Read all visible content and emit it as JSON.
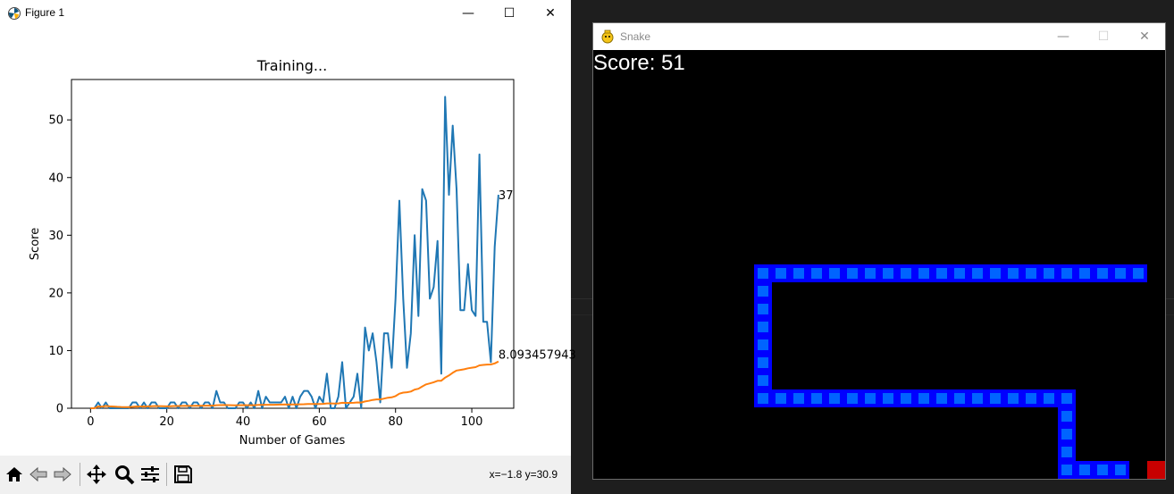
{
  "figure_window": {
    "title": "Figure 1",
    "controls": {
      "minimize": "—",
      "maximize": "☐",
      "close": "✕"
    }
  },
  "plot": {
    "title": "Training...",
    "xlabel": "Number of Games",
    "ylabel": "Score",
    "last_score_label": "37",
    "last_mean_label": "8.093457943"
  },
  "chart_data": {
    "type": "line",
    "title": "Training...",
    "xlabel": "Number of Games",
    "ylabel": "Score",
    "xlim": [
      -5,
      111
    ],
    "ylim": [
      0,
      57
    ],
    "xticks": [
      0,
      20,
      40,
      60,
      80,
      100
    ],
    "yticks": [
      0,
      10,
      20,
      30,
      40,
      50
    ],
    "grid": false,
    "series": [
      {
        "color": "#1f77b4",
        "values": [
          0,
          0,
          1,
          0,
          1,
          0,
          0,
          0,
          0,
          0,
          0,
          1,
          1,
          0,
          1,
          0,
          1,
          1,
          0,
          0,
          0,
          1,
          1,
          0,
          1,
          1,
          0,
          1,
          1,
          0,
          1,
          1,
          0,
          3,
          1,
          1,
          0,
          0,
          0,
          1,
          1,
          0,
          1,
          0,
          3,
          0,
          2,
          1,
          1,
          1,
          1,
          2,
          0,
          2,
          0,
          2,
          3,
          3,
          2,
          0,
          2,
          1,
          6,
          0,
          0,
          2,
          8,
          0,
          1,
          2,
          6,
          0,
          14,
          10,
          13,
          8,
          1,
          13,
          13,
          7,
          19,
          36,
          19,
          7,
          13,
          30,
          16,
          38,
          36,
          19,
          21,
          29,
          6,
          54,
          37,
          49,
          38,
          17,
          17,
          25,
          17,
          16,
          44,
          15,
          15,
          8,
          28,
          37
        ]
      },
      {
        "color": "#ff7f0e",
        "values": [
          0,
          0,
          0.33,
          0.25,
          0.4,
          0.33,
          0.29,
          0.25,
          0.22,
          0.2,
          0.18,
          0.25,
          0.31,
          0.29,
          0.33,
          0.31,
          0.35,
          0.39,
          0.37,
          0.35,
          0.33,
          0.36,
          0.39,
          0.38,
          0.4,
          0.42,
          0.41,
          0.43,
          0.45,
          0.43,
          0.45,
          0.47,
          0.45,
          0.53,
          0.54,
          0.55,
          0.54,
          0.53,
          0.51,
          0.53,
          0.54,
          0.52,
          0.53,
          0.52,
          0.58,
          0.57,
          0.6,
          0.6,
          0.61,
          0.62,
          0.63,
          0.65,
          0.64,
          0.67,
          0.65,
          0.68,
          0.7,
          0.74,
          0.75,
          0.74,
          0.75,
          0.76,
          0.84,
          0.83,
          0.82,
          0.83,
          0.94,
          0.93,
          0.93,
          0.94,
          1.01,
          0.99,
          1.17,
          1.29,
          1.44,
          1.54,
          1.53,
          1.68,
          1.82,
          1.89,
          2.11,
          2.52,
          2.71,
          2.77,
          2.9,
          3.23,
          3.38,
          3.78,
          4.14,
          4.31,
          4.5,
          4.76,
          4.77,
          5.32,
          5.69,
          6.15,
          6.53,
          6.64,
          6.75,
          6.93,
          7.03,
          7.12,
          7.43,
          7.51,
          7.58,
          7.59,
          7.78,
          8.093457943
        ]
      }
    ],
    "annotations": [
      "37",
      "8.093457943"
    ]
  },
  "toolbar": {
    "icons": [
      "home-icon",
      "back-icon",
      "forward-icon",
      "pan-icon",
      "zoom-icon",
      "configure-icon",
      "save-icon"
    ],
    "coords": "x=−1.8 y=30.9"
  },
  "snake_window": {
    "title": "Snake",
    "controls": {
      "minimize": "—",
      "maximize": "☐",
      "close": "✕"
    },
    "score_text": "Score: 51",
    "snake_color": "#0000ff",
    "snake_inner_color": "#0064ff",
    "food_color": "#c80000"
  }
}
